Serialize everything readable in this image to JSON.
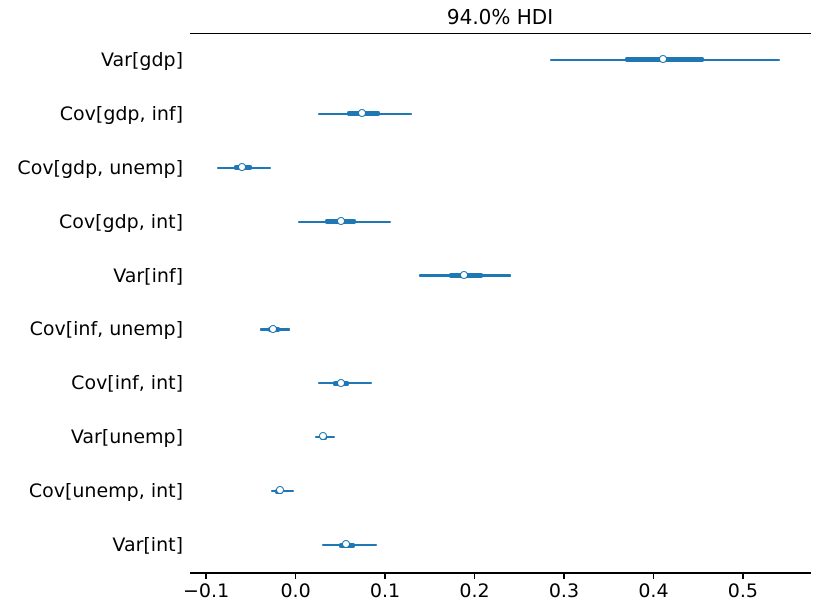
{
  "chart_data": {
    "type": "forest",
    "title": "94.0% HDI",
    "hdi_probability": "94.0%",
    "legend_position": "none",
    "grid": false,
    "accent_color": "#1f77b4",
    "marker_style": "open-circle-white-fill",
    "xlabel": "",
    "ylabel": "",
    "xlim": [
      -0.118,
      0.575
    ],
    "x_ticks": [
      {
        "value": -0.1,
        "label": "−0.1"
      },
      {
        "value": 0.0,
        "label": "0.0"
      },
      {
        "value": 0.1,
        "label": "0.1"
      },
      {
        "value": 0.2,
        "label": "0.2"
      },
      {
        "value": 0.3,
        "label": "0.3"
      },
      {
        "value": 0.4,
        "label": "0.4"
      },
      {
        "value": 0.5,
        "label": "0.5"
      }
    ],
    "rows": [
      {
        "label": "Var[gdp]",
        "median": 0.412,
        "iqr": [
          0.368,
          0.457
        ],
        "hdi": [
          0.284,
          0.541
        ]
      },
      {
        "label": "Cov[gdp, inf]",
        "median": 0.075,
        "iqr": [
          0.057,
          0.094
        ],
        "hdi": [
          0.025,
          0.13
        ]
      },
      {
        "label": "Cov[gdp, unemp]",
        "median": -0.059,
        "iqr": [
          -0.069,
          -0.049
        ],
        "hdi": [
          -0.088,
          -0.028
        ]
      },
      {
        "label": "Cov[gdp, int]",
        "median": 0.052,
        "iqr": [
          0.033,
          0.068
        ],
        "hdi": [
          0.003,
          0.107
        ]
      },
      {
        "label": "Var[inf]",
        "median": 0.189,
        "iqr": [
          0.172,
          0.209
        ],
        "hdi": [
          0.138,
          0.241
        ]
      },
      {
        "label": "Cov[inf, unemp]",
        "median": -0.024,
        "iqr": [
          -0.031,
          -0.017
        ],
        "hdi": [
          -0.04,
          -0.006
        ]
      },
      {
        "label": "Cov[inf, int]",
        "median": 0.052,
        "iqr": [
          0.042,
          0.06
        ],
        "hdi": [
          0.025,
          0.086
        ]
      },
      {
        "label": "Var[unemp]",
        "median": 0.031,
        "iqr": [
          0.027,
          0.035
        ],
        "hdi": [
          0.022,
          0.044
        ]
      },
      {
        "label": "Cov[unemp, int]",
        "median": -0.017,
        "iqr": [
          -0.023,
          -0.014
        ],
        "hdi": [
          -0.028,
          -0.002
        ]
      },
      {
        "label": "Var[int]",
        "median": 0.057,
        "iqr": [
          0.048,
          0.066
        ],
        "hdi": [
          0.03,
          0.091
        ]
      }
    ]
  }
}
